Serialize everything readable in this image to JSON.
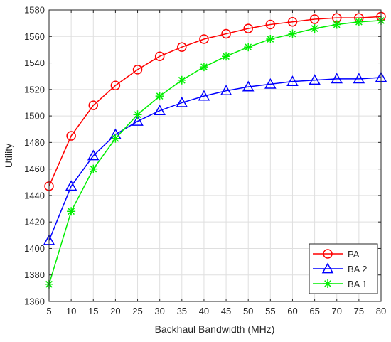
{
  "chart_data": {
    "type": "line",
    "xlabel": "Backhaul Bandwidth (MHz)",
    "ylabel": "Utility",
    "xlim": [
      5,
      80
    ],
    "ylim": [
      1360,
      1580
    ],
    "xticks": [
      5,
      10,
      15,
      20,
      25,
      30,
      35,
      40,
      45,
      50,
      55,
      60,
      65,
      70,
      75,
      80
    ],
    "yticks": [
      1360,
      1380,
      1400,
      1420,
      1440,
      1460,
      1480,
      1500,
      1520,
      1540,
      1560,
      1580
    ],
    "grid": true,
    "legend_position": "bottom-right",
    "x": [
      5,
      10,
      15,
      20,
      25,
      30,
      35,
      40,
      45,
      50,
      55,
      60,
      65,
      70,
      75,
      80
    ],
    "series": [
      {
        "name": "PA",
        "color": "#ff0000",
        "marker": "circle",
        "values": [
          1447,
          1485,
          1508,
          1523,
          1535,
          1545,
          1552,
          1558,
          1562,
          1566,
          1569,
          1571,
          1573,
          1574,
          1574,
          1575
        ]
      },
      {
        "name": "BA 2",
        "color": "#0000ff",
        "marker": "triangle",
        "values": [
          1406,
          1447,
          1470,
          1486,
          1496,
          1504,
          1510,
          1515,
          1519,
          1522,
          1524,
          1526,
          1527,
          1528,
          1528,
          1529
        ]
      },
      {
        "name": "BA 1",
        "color": "#00ee00",
        "marker": "asterisk",
        "values": [
          1373,
          1428,
          1460,
          1483,
          1501,
          1515,
          1527,
          1537,
          1545,
          1552,
          1558,
          1562,
          1566,
          1569,
          1571,
          1572
        ]
      }
    ]
  }
}
